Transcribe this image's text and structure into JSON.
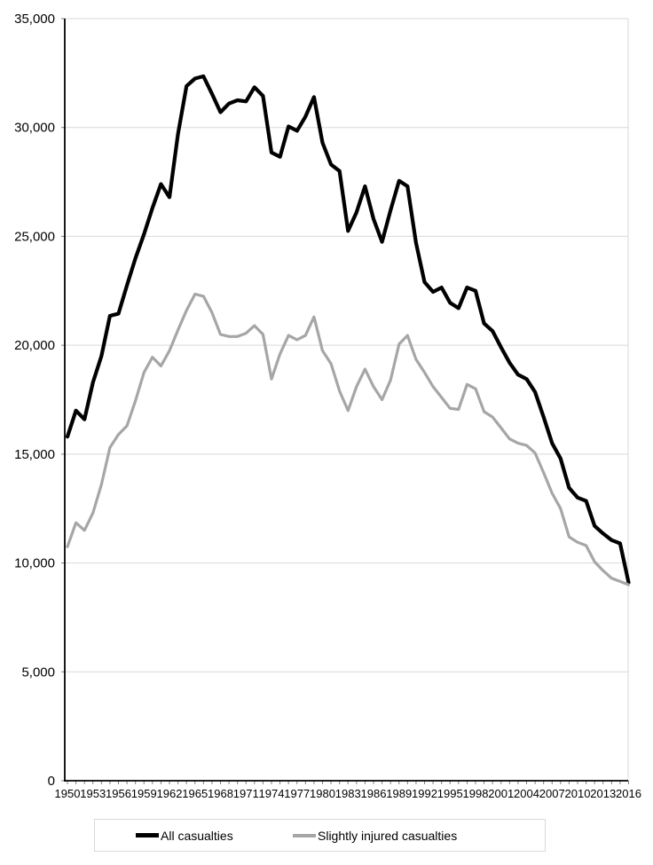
{
  "chart_data": {
    "type": "line",
    "grid": "horizontal",
    "legend_position": "bottom",
    "ylim": [
      0,
      35000
    ],
    "ytick_interval": 5000,
    "ytick_labels": [
      "0",
      "5,000",
      "10,000",
      "15,000",
      "20,000",
      "25,000",
      "30,000",
      "35,000"
    ],
    "xtick_label_interval": 3,
    "xtick_labels": [
      "1950",
      "1953",
      "1956",
      "1959",
      "1962",
      "1965",
      "1968",
      "1971",
      "1974",
      "1977",
      "1980",
      "1983",
      "1986",
      "1989",
      "1992",
      "1995",
      "1998",
      "2001",
      "2004",
      "2007",
      "2010",
      "2013",
      "2016"
    ],
    "years": [
      1950,
      1951,
      1952,
      1953,
      1954,
      1955,
      1956,
      1957,
      1958,
      1959,
      1960,
      1961,
      1962,
      1963,
      1964,
      1965,
      1966,
      1967,
      1968,
      1969,
      1970,
      1971,
      1972,
      1973,
      1974,
      1975,
      1976,
      1977,
      1978,
      1979,
      1980,
      1981,
      1982,
      1983,
      1984,
      1985,
      1986,
      1987,
      1988,
      1989,
      1990,
      1991,
      1992,
      1993,
      1994,
      1995,
      1996,
      1997,
      1998,
      1999,
      2000,
      2001,
      2002,
      2003,
      2004,
      2005,
      2006,
      2007,
      2008,
      2009,
      2010,
      2011,
      2012,
      2013,
      2014,
      2015,
      2016
    ],
    "series": [
      {
        "name": "All casualties",
        "color": "#000000",
        "stroke_width": 4.2,
        "values": [
          15800,
          17000,
          16600,
          18300,
          19500,
          21350,
          21450,
          22750,
          24000,
          25100,
          26300,
          27400,
          26800,
          29700,
          31900,
          32250,
          32350,
          31550,
          30700,
          31100,
          31250,
          31200,
          31850,
          31450,
          28850,
          28650,
          30050,
          29850,
          30500,
          31400,
          29300,
          28300,
          28000,
          25250,
          26100,
          27300,
          25800,
          24750,
          26200,
          27550,
          27300,
          24700,
          22900,
          22450,
          22650,
          21950,
          21700,
          22650,
          22500,
          21000,
          20650,
          19900,
          19200,
          18650,
          18450,
          17850,
          16700,
          15500,
          14800,
          13450,
          13000,
          12850,
          11700,
          11350,
          11050,
          10900,
          9100
        ]
      },
      {
        "name": "Slightly injured casualties",
        "color": "#a6a6a6",
        "stroke_width": 3.2,
        "values": [
          10750,
          11850,
          11500,
          12300,
          13600,
          15300,
          15900,
          16300,
          17450,
          18750,
          19450,
          19050,
          19750,
          20700,
          21600,
          22350,
          22250,
          21500,
          20500,
          20400,
          20400,
          20550,
          20900,
          20500,
          18450,
          19600,
          20450,
          20250,
          20450,
          21300,
          19750,
          19150,
          17900,
          17000,
          18100,
          18900,
          18100,
          17500,
          18400,
          20050,
          20450,
          19350,
          18750,
          18100,
          17600,
          17100,
          17050,
          18200,
          18000,
          16950,
          16700,
          16200,
          15700,
          15500,
          15400,
          15050,
          14150,
          13200,
          12500,
          11200,
          10950,
          10800,
          10050,
          9650,
          9300,
          9150,
          9000
        ]
      }
    ],
    "colors": {
      "gridline": "#d9d9d9",
      "axis": "#000000",
      "tick": "#7f7f7f",
      "plot_right_border": "#d9d9d9"
    }
  },
  "legend": {
    "items": [
      {
        "label": "All casualties"
      },
      {
        "label": "Slightly injured casualties"
      }
    ]
  }
}
